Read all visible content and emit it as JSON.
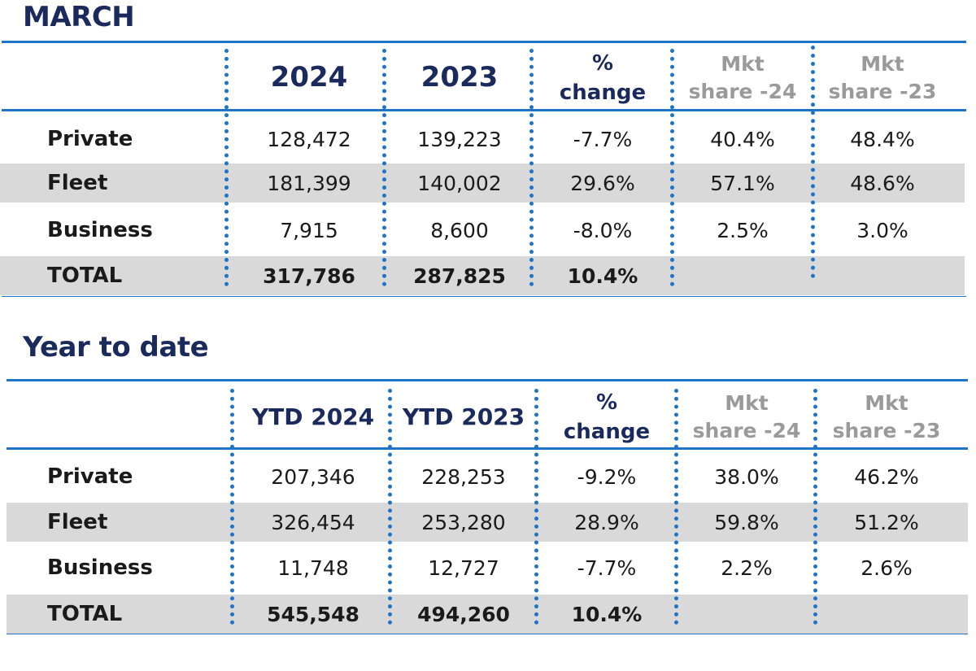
{
  "sections": [
    {
      "title": "MARCH",
      "headers": {
        "col1": "2024",
        "col2": "2023",
        "pct_line1": "%",
        "pct_line2": "change",
        "share24_line1": "Mkt",
        "share24_line2": "share -24",
        "share23_line1": "Mkt",
        "share23_line2": "share -23"
      },
      "rows": [
        {
          "label": "Private",
          "v1": "128,472",
          "v2": "139,223",
          "pct": "-7.7%",
          "s24": "40.4%",
          "s23": "48.4%"
        },
        {
          "label": "Fleet",
          "v1": "181,399",
          "v2": "140,002",
          "pct": "29.6%",
          "s24": "57.1%",
          "s23": "48.6%"
        },
        {
          "label": "Business",
          "v1": "7,915",
          "v2": "8,600",
          "pct": "-8.0%",
          "s24": "2.5%",
          "s23": "3.0%"
        },
        {
          "label": "TOTAL",
          "v1": "317,786",
          "v2": "287,825",
          "pct": "10.4%",
          "s24": "",
          "s23": ""
        }
      ]
    },
    {
      "title": "Year to date",
      "headers": {
        "col1": "YTD 2024",
        "col2": "YTD 2023",
        "pct_line1": "%",
        "pct_line2": "change",
        "share24_line1": "Mkt",
        "share24_line2": "share -24",
        "share23_line1": "Mkt",
        "share23_line2": "share -23"
      },
      "rows": [
        {
          "label": "Private",
          "v1": "207,346",
          "v2": "228,253",
          "pct": "-9.2%",
          "s24": "38.0%",
          "s23": "46.2%"
        },
        {
          "label": "Fleet",
          "v1": "326,454",
          "v2": "253,280",
          "pct": "28.9%",
          "s24": "59.8%",
          "s23": "51.2%"
        },
        {
          "label": "Business",
          "v1": "11,748",
          "v2": "12,727",
          "pct": "-7.7%",
          "s24": "2.2%",
          "s23": "2.6%"
        },
        {
          "label": "TOTAL",
          "v1": "545,548",
          "v2": "494,260",
          "pct": "10.4%",
          "s24": "",
          "s23": ""
        }
      ]
    }
  ]
}
